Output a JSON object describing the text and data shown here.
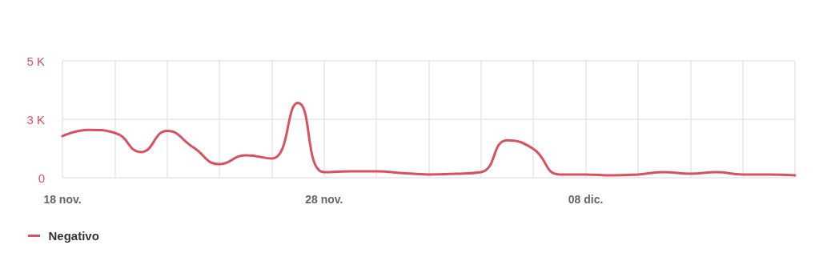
{
  "chart_data": {
    "type": "line",
    "x": [
      "--11-18",
      "--11-19",
      "--11-20",
      "--11-21",
      "--11-22",
      "--11-23",
      "--11-24",
      "--11-25",
      "--11-26",
      "--11-27",
      "--11-28",
      "--11-29",
      "--11-30",
      "--12-01",
      "--12-02",
      "--12-03",
      "--12-04",
      "--12-05",
      "--12-06",
      "--12-07",
      "--12-08",
      "--12-09",
      "--12-10",
      "--12-11",
      "--12-12",
      "--12-13",
      "--12-14",
      "--12-15",
      "--12-16"
    ],
    "series": [
      {
        "name": "Negativo",
        "color": "#d9505f",
        "values": [
          1780,
          2050,
          1920,
          1100,
          2000,
          1300,
          580,
          960,
          820,
          3200,
          240,
          270,
          270,
          200,
          140,
          170,
          240,
          1600,
          1230,
          140,
          140,
          100,
          140,
          240,
          170,
          240,
          140,
          140,
          100
        ]
      }
    ],
    "xlim": [
      "--11-18",
      "--12-16"
    ],
    "xticks": [
      {
        "value": "--11-18",
        "label": "18 nov."
      },
      {
        "value": "--11-20",
        "label": null
      },
      {
        "value": "--11-22",
        "label": null
      },
      {
        "value": "--11-24",
        "label": null
      },
      {
        "value": "--11-26",
        "label": null
      },
      {
        "value": "--11-28",
        "label": "28 nov."
      },
      {
        "value": "--11-30",
        "label": null
      },
      {
        "value": "--12-02",
        "label": null
      },
      {
        "value": "--12-04",
        "label": null
      },
      {
        "value": "--12-06",
        "label": null
      },
      {
        "value": "--12-08",
        "label": "08 dic."
      },
      {
        "value": "--12-10",
        "label": null
      },
      {
        "value": "--12-12",
        "label": null
      },
      {
        "value": "--12-14",
        "label": null
      },
      {
        "value": "--12-16",
        "label": null
      }
    ],
    "ylim": [
      0,
      5000
    ],
    "yticks": [
      0,
      {
        "value": 2500,
        "label": "3 K"
      },
      {
        "value": 5000,
        "label": "5 K"
      }
    ],
    "grid": true,
    "legend": "bottom left",
    "marker": "none",
    "line_style": "solid"
  }
}
